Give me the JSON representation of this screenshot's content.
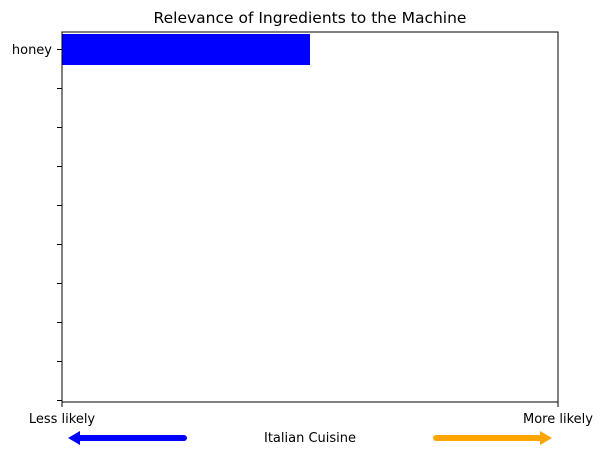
{
  "chart_data": {
    "type": "bar",
    "orientation": "horizontal",
    "title": "Relevance of Ingredients to the Machine",
    "categories": [
      "honey"
    ],
    "values": [
      0.5
    ],
    "xlim": [
      0,
      1
    ],
    "bar_color": "#0000ff",
    "x_tick_labels": {
      "left": "Less likely",
      "right": "More likely"
    },
    "xlabel": "Italian Cuisine",
    "arrows": {
      "left_color": "#0000ff",
      "right_color": "#ffa500"
    },
    "grid": false
  }
}
